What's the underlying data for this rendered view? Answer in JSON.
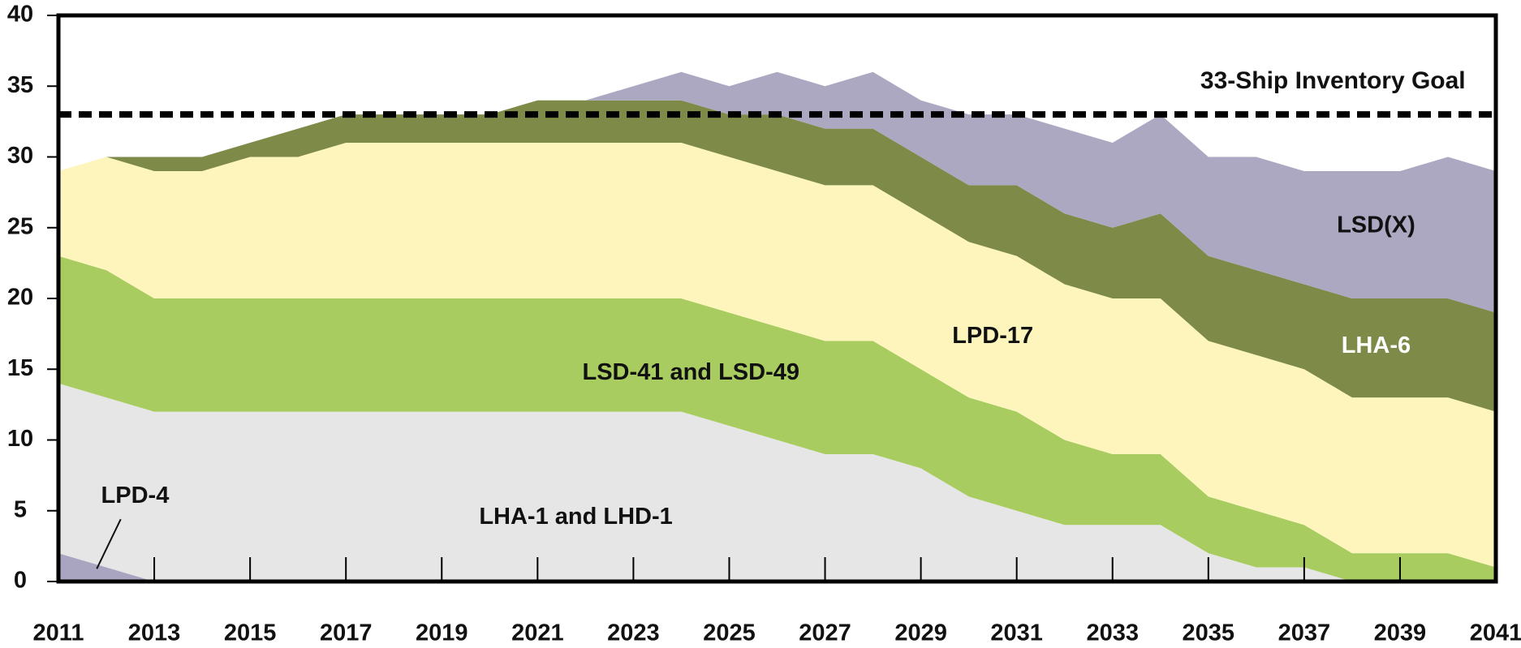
{
  "chart_data": {
    "type": "stacked_area",
    "x": [
      2011,
      2012,
      2013,
      2014,
      2015,
      2016,
      2017,
      2018,
      2019,
      2020,
      2021,
      2022,
      2023,
      2024,
      2025,
      2026,
      2027,
      2028,
      2029,
      2030,
      2031,
      2032,
      2033,
      2034,
      2035,
      2036,
      2037,
      2038,
      2039,
      2040,
      2041
    ],
    "series": [
      {
        "name": "LPD-4",
        "color": "#a9a5c0",
        "values": [
          2,
          1,
          0,
          0,
          0,
          0,
          0,
          0,
          0,
          0,
          0,
          0,
          0,
          0,
          0,
          0,
          0,
          0,
          0,
          0,
          0,
          0,
          0,
          0,
          0,
          0,
          0,
          0,
          0,
          0,
          0
        ]
      },
      {
        "name": "LHA-1 and LHD-1",
        "color": "#e6e6e6",
        "values": [
          12,
          12,
          12,
          12,
          12,
          12,
          12,
          12,
          12,
          12,
          12,
          12,
          12,
          12,
          11,
          10,
          9,
          9,
          8,
          6,
          5,
          4,
          4,
          4,
          2,
          1,
          1,
          0,
          0,
          0,
          0
        ]
      },
      {
        "name": "LSD-41 and LSD-49",
        "color": "#a8cc60",
        "values": [
          9,
          9,
          8,
          8,
          8,
          8,
          8,
          8,
          8,
          8,
          8,
          8,
          8,
          8,
          8,
          8,
          8,
          8,
          7,
          7,
          7,
          6,
          5,
          5,
          4,
          4,
          3,
          2,
          2,
          2,
          1
        ]
      },
      {
        "name": "LPD-17",
        "color": "#fdf5bb",
        "values": [
          6,
          8,
          9,
          9,
          10,
          10,
          11,
          11,
          11,
          11,
          11,
          11,
          11,
          11,
          11,
          11,
          11,
          11,
          11,
          11,
          11,
          11,
          11,
          11,
          11,
          11,
          11,
          11,
          11,
          11,
          11
        ]
      },
      {
        "name": "LHA-6",
        "color": "#7d8a48",
        "values": [
          0,
          0,
          1,
          1,
          1,
          2,
          2,
          2,
          2,
          2,
          3,
          3,
          3,
          3,
          3,
          4,
          4,
          4,
          4,
          4,
          5,
          5,
          5,
          6,
          6,
          6,
          6,
          7,
          7,
          7,
          7
        ]
      },
      {
        "name": "LSD(X)",
        "color": "#aca8c2",
        "values": [
          0,
          0,
          0,
          0,
          0,
          0,
          0,
          0,
          0,
          0,
          0,
          0,
          1,
          2,
          2,
          3,
          3,
          4,
          4,
          5,
          5,
          6,
          6,
          7,
          7,
          8,
          8,
          9,
          9,
          10,
          10
        ]
      }
    ],
    "goal": {
      "value": 33,
      "label": "33-Ship Inventory Goal"
    },
    "xlim": [
      2011,
      2041
    ],
    "xticks": [
      2011,
      2013,
      2015,
      2017,
      2019,
      2021,
      2023,
      2025,
      2027,
      2029,
      2031,
      2033,
      2035,
      2037,
      2039,
      2041
    ],
    "ylim": [
      0,
      40
    ],
    "yticks": [
      0,
      5,
      10,
      15,
      20,
      25,
      30,
      35,
      40
    ]
  }
}
